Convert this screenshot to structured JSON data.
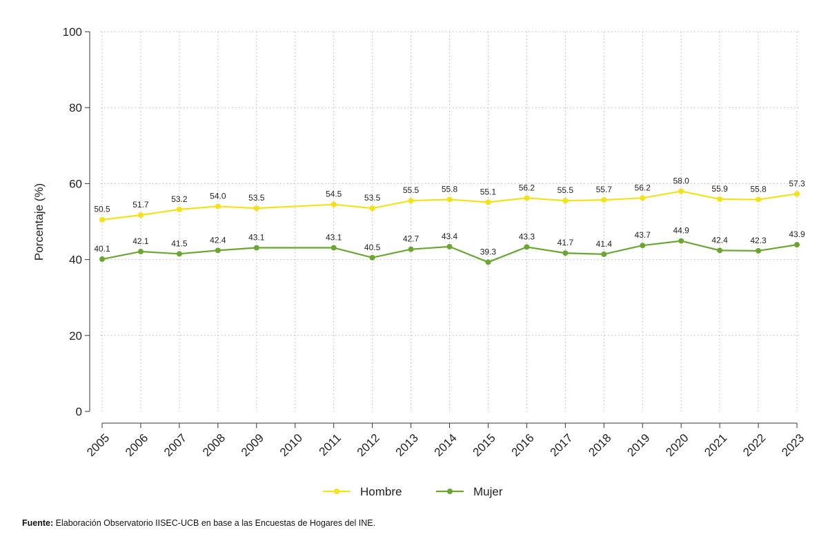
{
  "chart_data": {
    "type": "line",
    "x": [
      "2005",
      "2006",
      "2007",
      "2008",
      "2009",
      "2010",
      "2011",
      "2012",
      "2013",
      "2014",
      "2015",
      "2016",
      "2017",
      "2018",
      "2019",
      "2020",
      "2021",
      "2022",
      "2023"
    ],
    "series": [
      {
        "name": "Hombre",
        "color": "#f5e11a",
        "values": [
          50.5,
          51.7,
          53.2,
          54.0,
          53.5,
          null,
          54.5,
          53.5,
          55.5,
          55.8,
          55.1,
          56.2,
          55.5,
          55.7,
          56.2,
          58.0,
          55.9,
          55.8,
          57.3
        ],
        "labels": [
          "50.5",
          "51.7",
          "53.2",
          "54.0",
          "53.5",
          "",
          "54.5",
          "53.5",
          "55.5",
          "55.8",
          "55.1",
          "56.2",
          "55.5",
          "55.7",
          "56.2",
          "58.0",
          "55.9",
          "55.8",
          "57.3"
        ]
      },
      {
        "name": "Mujer",
        "color": "#6aa632",
        "values": [
          40.1,
          42.1,
          41.5,
          42.4,
          43.1,
          null,
          43.1,
          40.5,
          42.7,
          43.4,
          39.3,
          43.3,
          41.7,
          41.4,
          43.7,
          44.9,
          42.4,
          42.3,
          43.9
        ],
        "labels": [
          "40.1",
          "42.1",
          "41.5",
          "42.4",
          "43.1",
          "",
          "43.1",
          "40.5",
          "42.7",
          "43.4",
          "39.3",
          "43.3",
          "41.7",
          "41.4",
          "43.7",
          "44.9",
          "42.4",
          "42.3",
          "43.9"
        ]
      }
    ],
    "ylabel": "Porcentaje (%)",
    "xlabel": "",
    "ylim": [
      0,
      100
    ],
    "yticks": [
      0,
      20,
      40,
      60,
      80,
      100
    ],
    "ytick_labels": [
      "0",
      "20",
      "40",
      "60",
      "80",
      "100"
    ],
    "grid": true,
    "legend": "bottom-center"
  },
  "source": {
    "label": "Fuente:",
    "text": "Elaboración Observatorio IISEC-UCB en base a las Encuestas de Hogares del INE."
  }
}
